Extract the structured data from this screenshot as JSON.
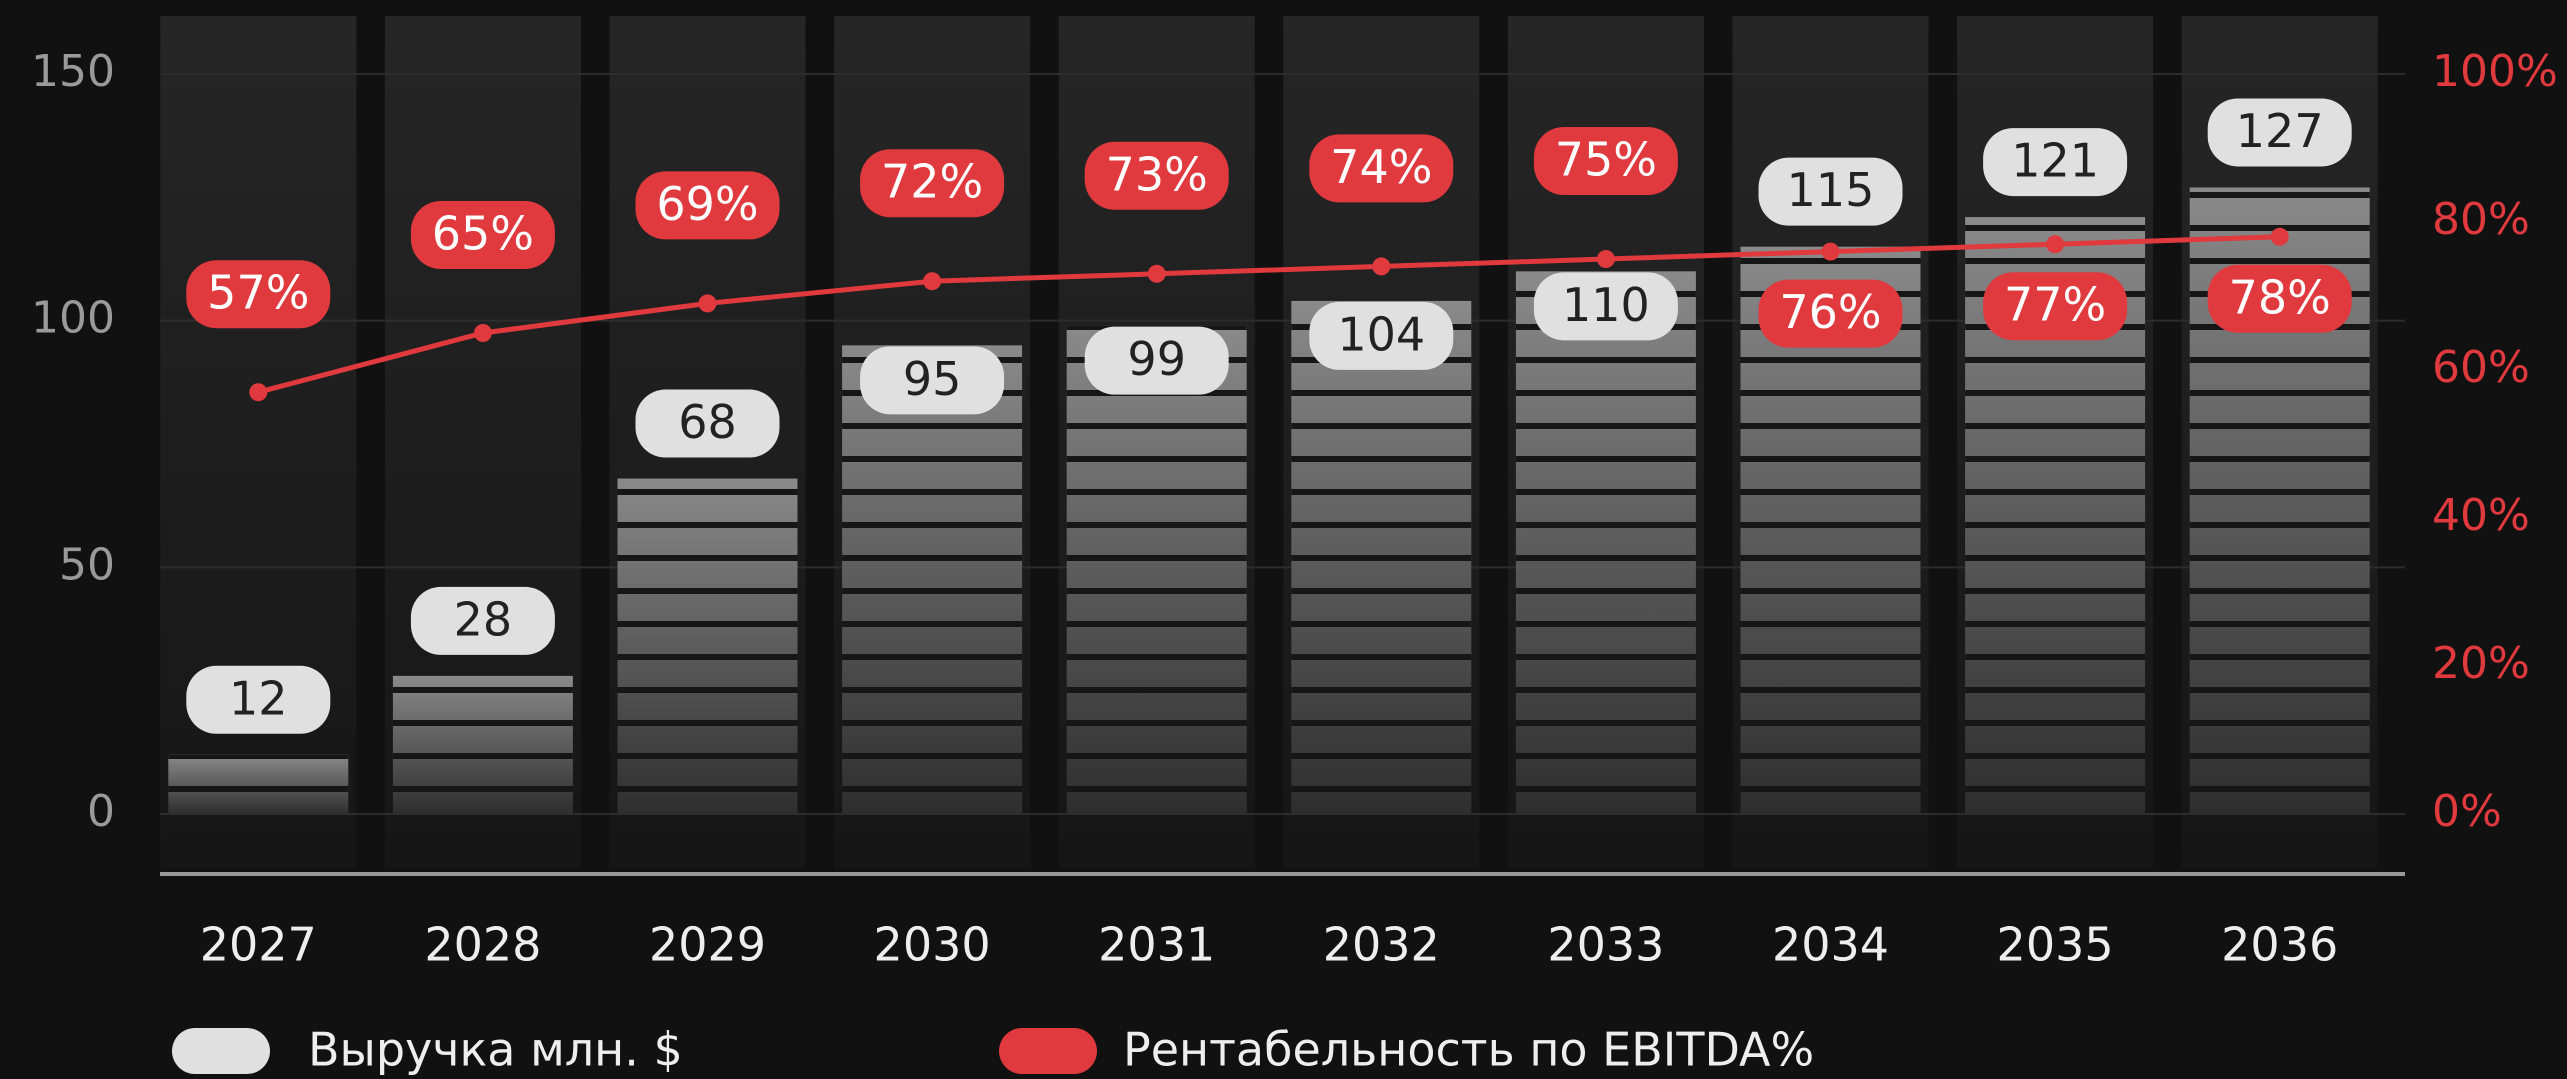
{
  "chart_data": {
    "type": "bar",
    "categories": [
      "2027",
      "2028",
      "2029",
      "2030",
      "2031",
      "2032",
      "2033",
      "2034",
      "2035",
      "2036"
    ],
    "series": [
      {
        "name": "Выручка млн. $",
        "color": "#e0e0e0",
        "values": [
          12,
          28,
          68,
          95,
          99,
          104,
          110,
          115,
          121,
          127
        ]
      },
      {
        "name": "Рентабельность по EBITDA%",
        "color": "#e0393e",
        "axis": "y2",
        "type": "line",
        "values": [
          57,
          65,
          69,
          72,
          73,
          74,
          75,
          76,
          77,
          78
        ],
        "value_labels": [
          "57%",
          "65%",
          "69%",
          "72%",
          "73%",
          "74%",
          "75%",
          "76%",
          "77%",
          "78%"
        ]
      }
    ],
    "ylim": [
      0,
      150
    ],
    "yticks": [
      0,
      50,
      100,
      150
    ],
    "y2lim": [
      0,
      100
    ],
    "y2ticks": [
      {
        "value": 0,
        "label": "0%"
      },
      {
        "value": 20,
        "label": "20%"
      },
      {
        "value": 40,
        "label": "40%"
      },
      {
        "value": 60,
        "label": "60%"
      },
      {
        "value": 80,
        "label": "80%"
      },
      {
        "value": 100,
        "label": "100%"
      }
    ],
    "grid": true,
    "legend": "bottom"
  }
}
